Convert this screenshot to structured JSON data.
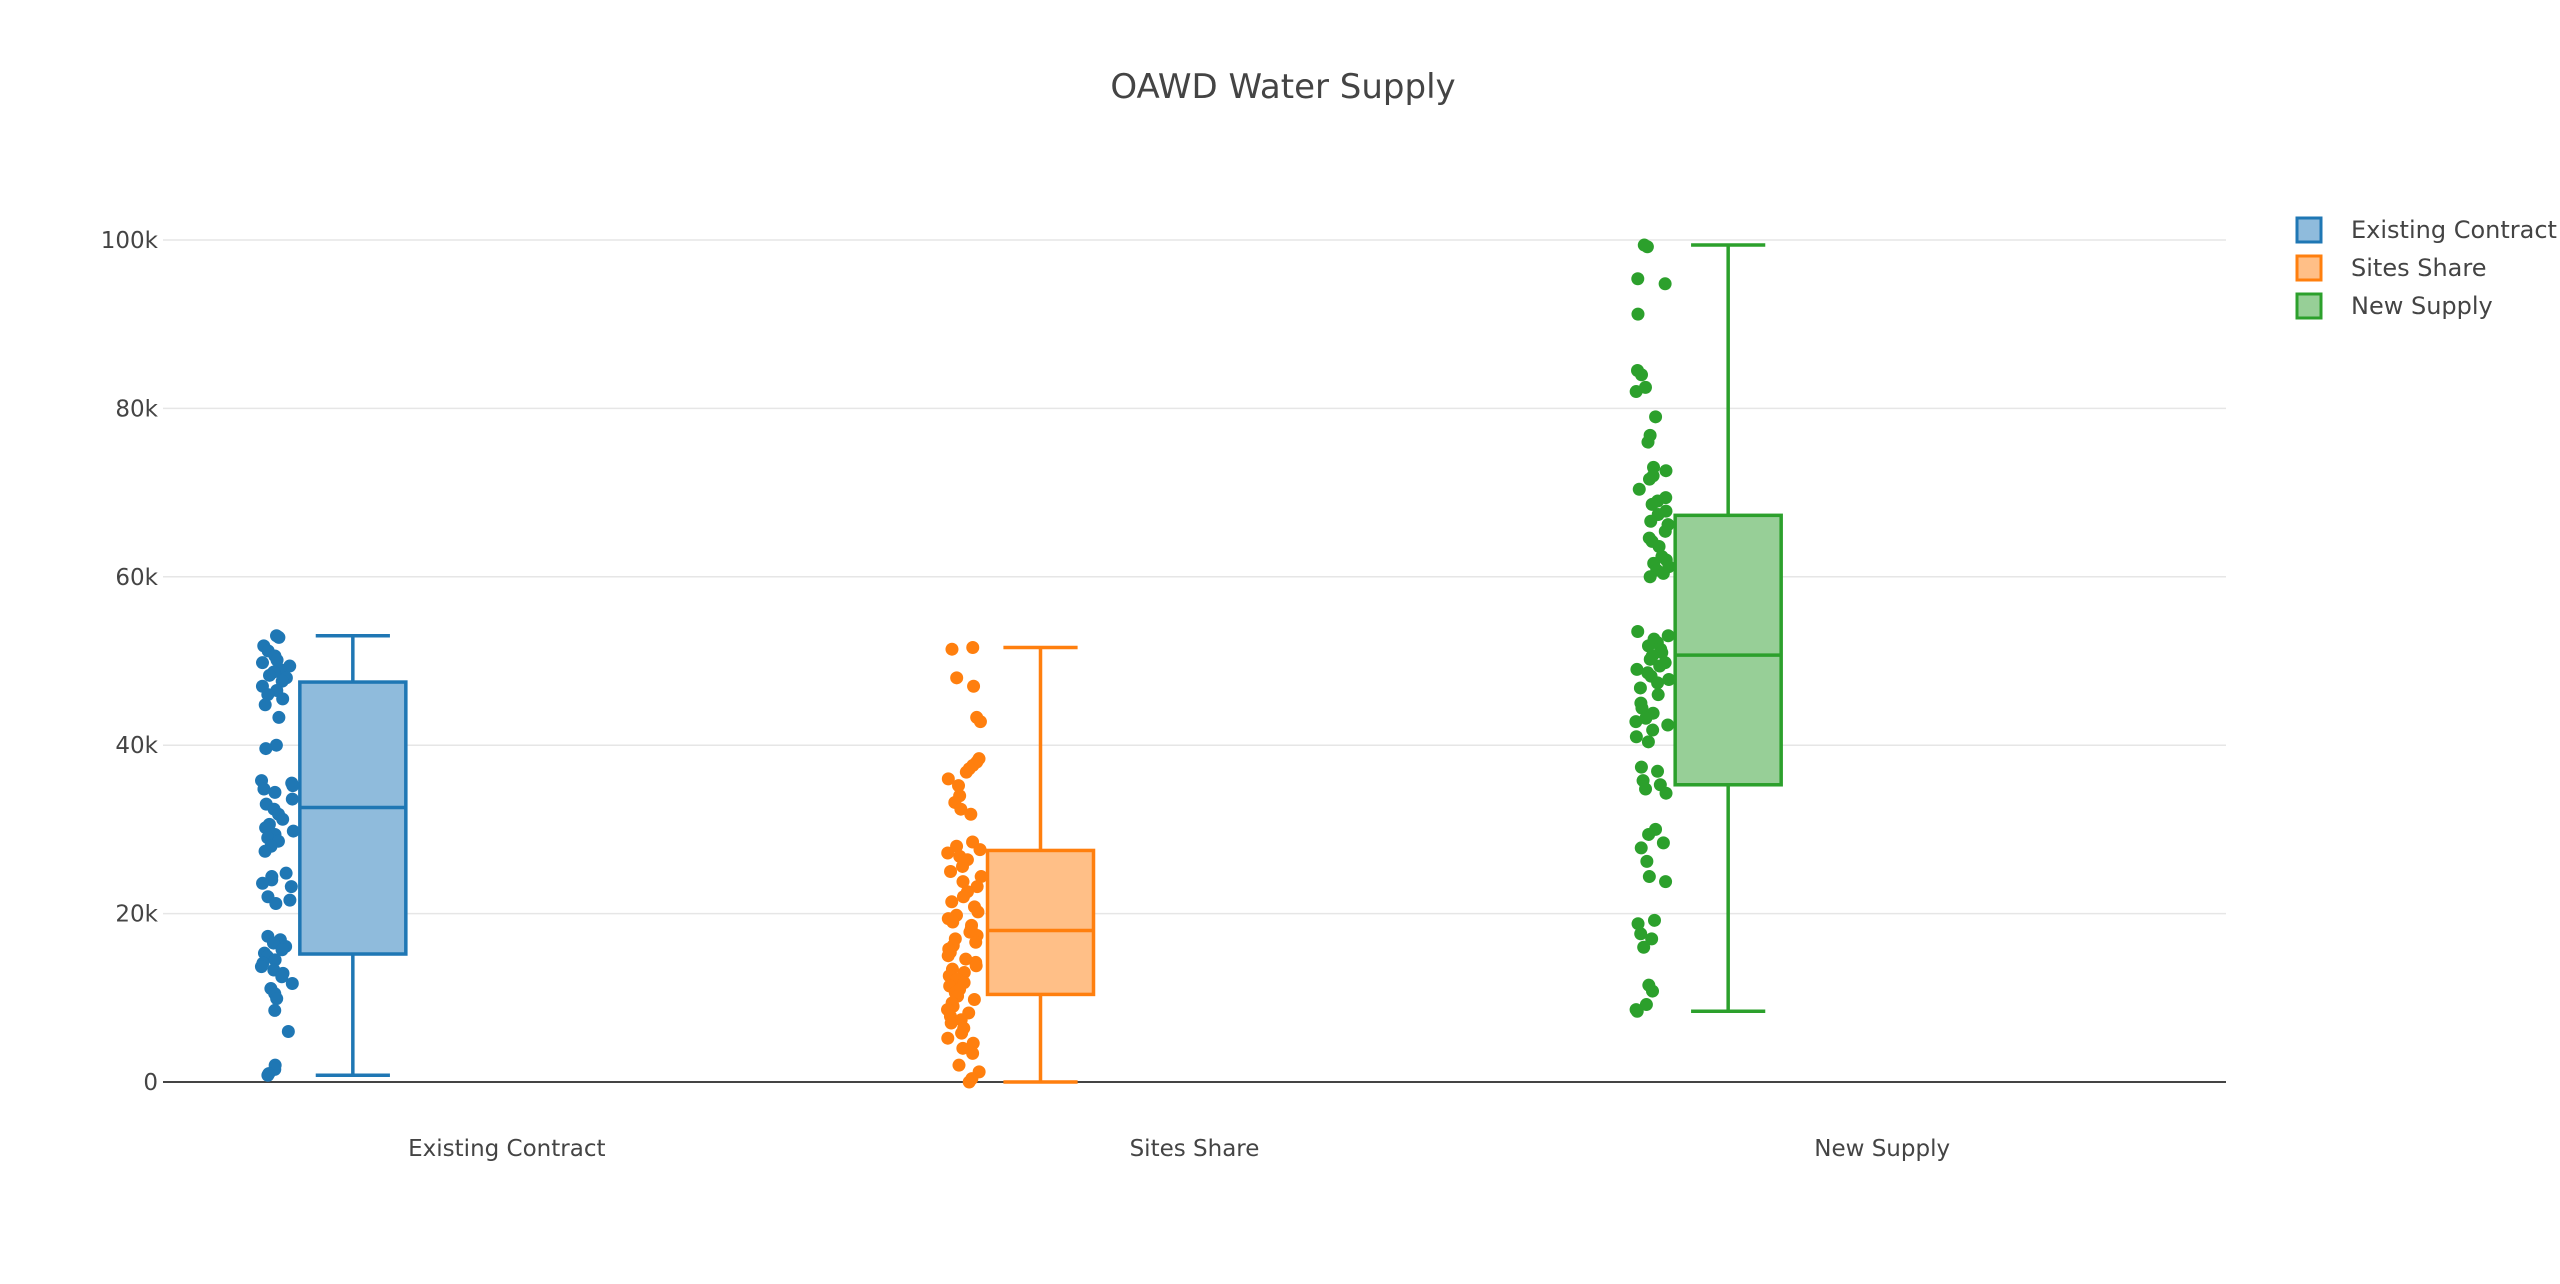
{
  "chart_data": {
    "type": "box",
    "title": "OAWD Water Supply",
    "xlabel": "",
    "ylabel": "",
    "ylim": [
      0,
      100000
    ],
    "yticks": [
      0,
      20000,
      40000,
      60000,
      80000,
      100000
    ],
    "ytick_labels": [
      "0",
      "20k",
      "40k",
      "60k",
      "80k",
      "100k"
    ],
    "categories": [
      "Existing Contract",
      "Sites Share",
      "New Supply"
    ],
    "grid": true,
    "legend_position": "top-right",
    "boxpoints": "all",
    "series": [
      {
        "name": "Existing Contract",
        "color": "#1f77b4",
        "fill": "#8fbbdc",
        "min": 800,
        "q1": 15200,
        "median": 32600,
        "q3": 47500,
        "max": 53000,
        "points": [
          53000,
          52800,
          51800,
          51200,
          50600,
          50100,
          49800,
          49400,
          49000,
          48700,
          48300,
          48000,
          47600,
          47000,
          46500,
          46000,
          45500,
          44800,
          43300,
          40000,
          39600,
          35800,
          35500,
          35200,
          34800,
          34400,
          33600,
          33000,
          32400,
          31800,
          31200,
          30600,
          30200,
          29800,
          29400,
          29000,
          28600,
          28000,
          27400,
          24800,
          24400,
          24000,
          23600,
          23200,
          22000,
          21600,
          21200,
          17300,
          16900,
          16500,
          16100,
          15700,
          15300,
          14900,
          14500,
          14100,
          13700,
          13300,
          12900,
          12500,
          11700,
          11100,
          10500,
          9900,
          8500,
          6000,
          2000,
          1500,
          1000,
          800
        ]
      },
      {
        "name": "Sites Share",
        "color": "#ff7f0e",
        "fill": "#ffbf87",
        "min": 0,
        "q1": 10400,
        "median": 18000,
        "q3": 27500,
        "max": 51600,
        "points": [
          51600,
          51400,
          48000,
          47000,
          43300,
          42800,
          38400,
          38000,
          37600,
          37200,
          36800,
          36000,
          35200,
          34000,
          33200,
          32400,
          31800,
          28500,
          28000,
          27600,
          27200,
          26800,
          26400,
          25600,
          25000,
          24400,
          23800,
          23200,
          22600,
          22000,
          21400,
          20800,
          20200,
          19800,
          19400,
          19000,
          18600,
          18200,
          17800,
          17400,
          17000,
          16600,
          16200,
          15800,
          15400,
          15000,
          14600,
          14200,
          13800,
          13400,
          13000,
          12600,
          12200,
          11800,
          11400,
          11000,
          10600,
          10200,
          9800,
          9400,
          9000,
          8600,
          8200,
          7800,
          7400,
          7000,
          6400,
          5800,
          5200,
          4600,
          4000,
          3400,
          2000,
          1200,
          400,
          0
        ]
      },
      {
        "name": "New Supply",
        "color": "#2ca02c",
        "fill": "#97cf97",
        "min": 8400,
        "q1": 35300,
        "median": 50700,
        "q3": 67300,
        "max": 99400,
        "points": [
          99400,
          99200,
          95400,
          94800,
          91200,
          84500,
          84000,
          82500,
          82000,
          79000,
          76800,
          76000,
          73000,
          72600,
          72000,
          71600,
          70400,
          69400,
          69000,
          68600,
          67800,
          67400,
          66600,
          66200,
          65400,
          64600,
          64200,
          63600,
          62400,
          62000,
          61600,
          61200,
          60800,
          60400,
          60000,
          53500,
          53000,
          52600,
          52200,
          51800,
          51400,
          51000,
          50600,
          50200,
          49800,
          49400,
          49000,
          48600,
          48200,
          47800,
          47400,
          46800,
          46000,
          45000,
          44400,
          43800,
          43200,
          42800,
          42400,
          41800,
          41000,
          40400,
          37400,
          36900,
          35800,
          35300,
          34800,
          34300,
          30000,
          29400,
          28400,
          27800,
          26200,
          24400,
          23800,
          19200,
          18800,
          17600,
          17000,
          16000,
          11500,
          10800,
          9200,
          8600,
          8400
        ]
      }
    ]
  }
}
